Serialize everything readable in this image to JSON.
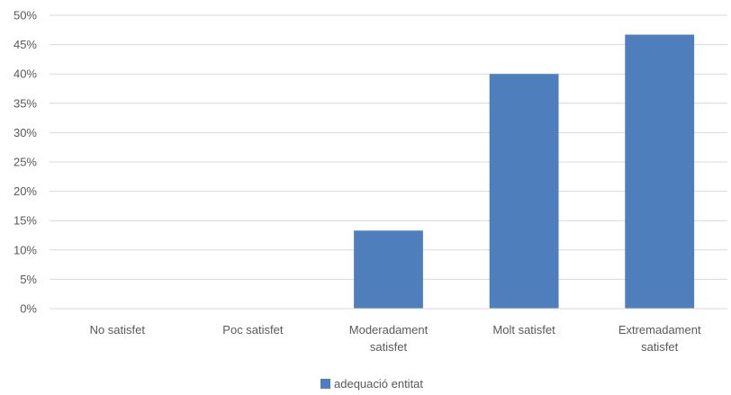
{
  "chart_data": {
    "type": "bar",
    "categories": [
      [
        "No satisfet"
      ],
      [
        "Poc satisfet"
      ],
      [
        "Moderadament",
        "satisfet"
      ],
      [
        "Molt satisfet"
      ],
      [
        "Extremadament",
        "satisfet"
      ]
    ],
    "series": [
      {
        "name": "adequació entitat",
        "values": [
          0,
          0,
          13.3,
          40.0,
          46.7
        ],
        "color": "#4f7ebd"
      }
    ],
    "y_ticks": [
      "0%",
      "5%",
      "10%",
      "15%",
      "20%",
      "25%",
      "30%",
      "35%",
      "40%",
      "45%",
      "50%"
    ],
    "ylim": [
      0,
      50
    ],
    "grid": true,
    "legend_position": "bottom-center",
    "gridline_color": "#d9d9d9"
  }
}
